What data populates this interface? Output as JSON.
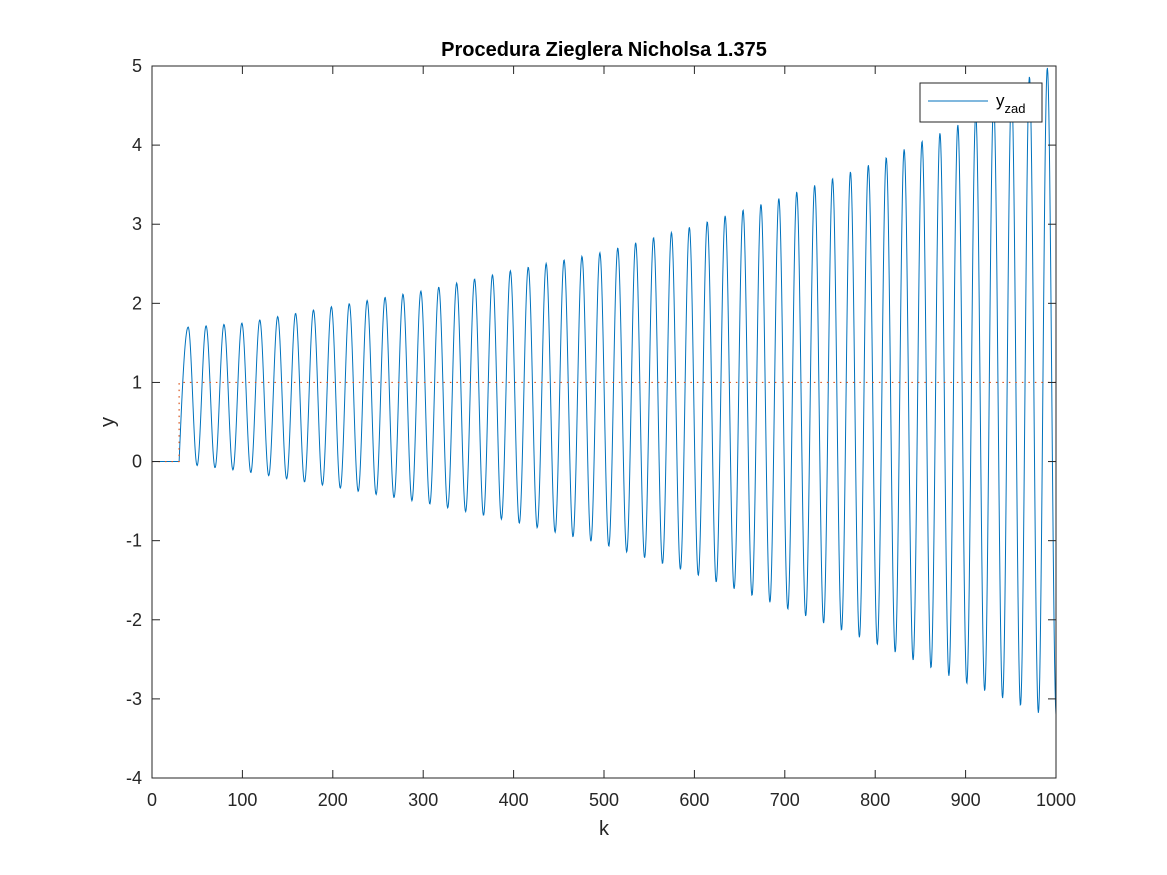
{
  "chart_data": {
    "type": "line",
    "title": "Procedura Zieglera Nicholsa 1.375",
    "xlabel": "k",
    "ylabel": "y",
    "xlim": [
      0,
      1000
    ],
    "ylim": [
      -4,
      5
    ],
    "xticks": [
      0,
      100,
      200,
      300,
      400,
      500,
      600,
      700,
      800,
      900,
      1000
    ],
    "yticks": [
      -4,
      -3,
      -2,
      -1,
      0,
      1,
      2,
      3,
      4,
      5
    ],
    "grid": false,
    "legend": {
      "placement": "top-right",
      "entries": [
        {
          "base": "y",
          "subscript": "zad",
          "series": 0
        }
      ]
    },
    "series": [
      {
        "color": "#0072BD",
        "style": "solid",
        "description": "oscillating output, step at k=30, period ~19.8 samples, growing amplitude",
        "step_k": 30,
        "period": 19.8,
        "peaks": [
          [
            40,
            1.7
          ],
          [
            100,
            1.75
          ],
          [
            200,
            1.96
          ],
          [
            300,
            2.16
          ],
          [
            400,
            2.42
          ],
          [
            500,
            2.65
          ],
          [
            600,
            2.98
          ],
          [
            700,
            3.35
          ],
          [
            800,
            3.78
          ],
          [
            900,
            4.3
          ],
          [
            975,
            4.9
          ],
          [
            995,
            5.0
          ]
        ],
        "troughs": [
          [
            50,
            -0.05
          ],
          [
            100,
            -0.12
          ],
          [
            200,
            -0.32
          ],
          [
            300,
            -0.52
          ],
          [
            400,
            -0.76
          ],
          [
            500,
            -1.05
          ],
          [
            600,
            -1.42
          ],
          [
            700,
            -1.85
          ],
          [
            800,
            -2.3
          ],
          [
            900,
            -2.8
          ],
          [
            990,
            -3.22
          ]
        ]
      },
      {
        "color": "#D95319",
        "style": "dotted",
        "x": [
          0,
          30,
          30,
          1000
        ],
        "y": [
          0,
          0,
          1,
          1
        ]
      }
    ]
  }
}
